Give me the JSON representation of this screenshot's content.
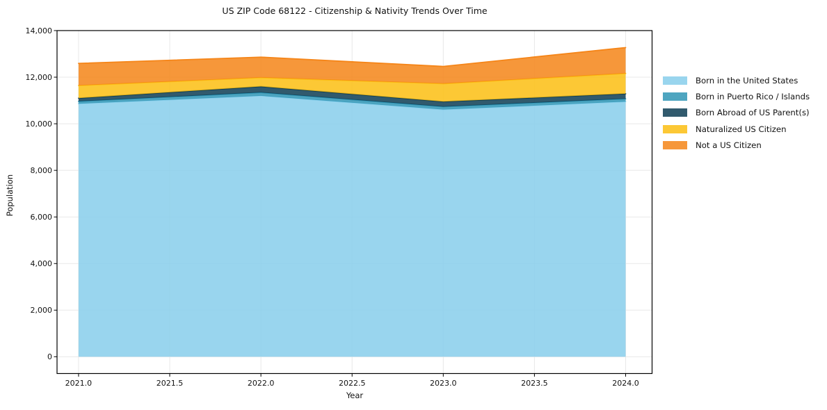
{
  "chart_data": {
    "type": "area",
    "stacked": true,
    "title": "US ZIP Code 68122 - Citizenship & Nativity Trends Over Time",
    "xlabel": "Year",
    "ylabel": "Population",
    "x": [
      2021,
      2022,
      2023,
      2024
    ],
    "series": [
      {
        "name": "Born in the United States",
        "values": [
          10860,
          11200,
          10610,
          10950
        ],
        "color": "#87ceeb"
      },
      {
        "name": "Born in Puerto Rico / Islands",
        "values": [
          100,
          140,
          120,
          120
        ],
        "color": "#2f95b5"
      },
      {
        "name": "Born Abroad of US Parent(s)",
        "values": [
          140,
          260,
          220,
          220
        ],
        "color": "#0d3d53"
      },
      {
        "name": "Naturalized US Citizen",
        "values": [
          540,
          380,
          770,
          870
        ],
        "color": "#fcbe12"
      },
      {
        "name": "Not a US Citizen",
        "values": [
          950,
          880,
          740,
          1110
        ],
        "color": "#f58518"
      }
    ],
    "totals": [
      12590,
      12860,
      12460,
      13270
    ],
    "xticks": {
      "values": [
        2021.0,
        2021.5,
        2022.0,
        2022.5,
        2023.0,
        2023.5,
        2024.0
      ],
      "labels": [
        "2021.0",
        "2021.5",
        "2022.0",
        "2022.5",
        "2023.0",
        "2023.5",
        "2024.0"
      ]
    },
    "yticks": {
      "values": [
        0,
        2000,
        4000,
        6000,
        8000,
        10000,
        12000,
        14000
      ],
      "labels": [
        "0",
        "2,000",
        "4,000",
        "6,000",
        "8,000",
        "10,000",
        "12,000",
        "14,000"
      ]
    },
    "xlim": [
      2020.882,
      2024.145
    ],
    "ylim": [
      -720,
      14000
    ],
    "grid": true,
    "grid_color": "#e8e8e8",
    "legend_position": "right-outside"
  }
}
